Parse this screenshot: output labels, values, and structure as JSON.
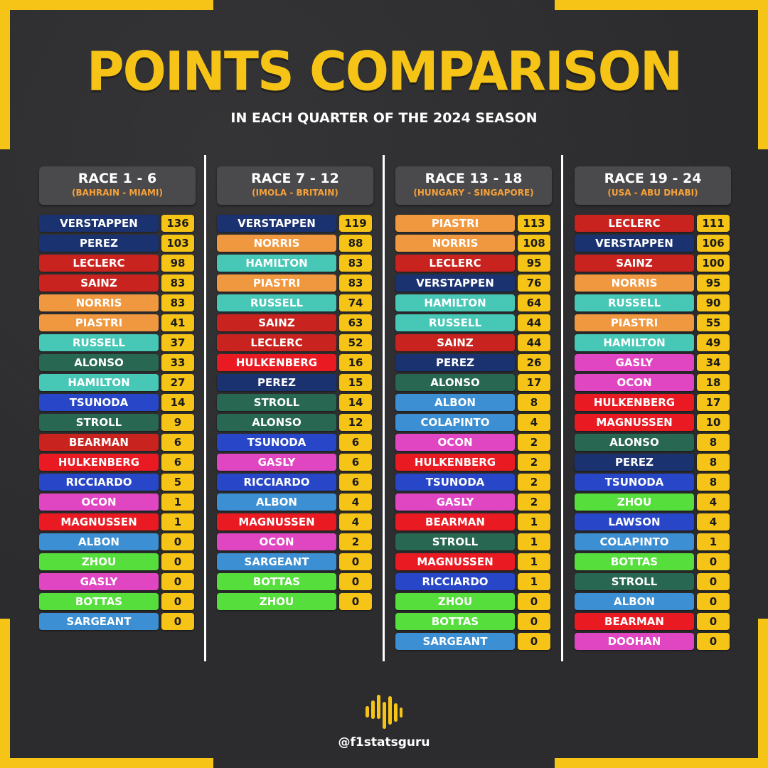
{
  "title": "POINTS COMPARISON",
  "subtitle": "IN EACH QUARTER OF THE 2024 SEASON",
  "handle": "@f1statsguru",
  "colors": {
    "accent": "#f6c417",
    "background": "#2c2c2e",
    "header_bg": "#4a4a4c",
    "header_sub": "#f6a13a"
  },
  "team_colors": {
    "redbull": "#1b3270",
    "ferrari": "#c8231f",
    "mclaren": "#f09840",
    "mercedes": "#47c7b5",
    "aston": "#286751",
    "rb": "#2847c8",
    "haas": "#ea1a22",
    "williams": "#3c8fd2",
    "sauber": "#56de3c",
    "alpine": "#e046c2"
  },
  "icons": {
    "logo": "f1statsguru-logo-icon"
  },
  "chart_data": {
    "type": "table",
    "title": "POINTS COMPARISON",
    "subtitle": "IN EACH QUARTER OF THE 2024 SEASON",
    "quarters": [
      {
        "label": "RACE 1 - 6",
        "range": "(BAHRAIN - MIAMI)",
        "rows": [
          {
            "driver": "VERSTAPPEN",
            "points": 136,
            "team": "redbull"
          },
          {
            "driver": "PEREZ",
            "points": 103,
            "team": "redbull"
          },
          {
            "driver": "LECLERC",
            "points": 98,
            "team": "ferrari"
          },
          {
            "driver": "SAINZ",
            "points": 83,
            "team": "ferrari"
          },
          {
            "driver": "NORRIS",
            "points": 83,
            "team": "mclaren"
          },
          {
            "driver": "PIASTRI",
            "points": 41,
            "team": "mclaren"
          },
          {
            "driver": "RUSSELL",
            "points": 37,
            "team": "mercedes"
          },
          {
            "driver": "ALONSO",
            "points": 33,
            "team": "aston"
          },
          {
            "driver": "HAMILTON",
            "points": 27,
            "team": "mercedes"
          },
          {
            "driver": "TSUNODA",
            "points": 14,
            "team": "rb"
          },
          {
            "driver": "STROLL",
            "points": 9,
            "team": "aston"
          },
          {
            "driver": "BEARMAN",
            "points": 6,
            "team": "ferrari"
          },
          {
            "driver": "HULKENBERG",
            "points": 6,
            "team": "haas"
          },
          {
            "driver": "RICCIARDO",
            "points": 5,
            "team": "rb"
          },
          {
            "driver": "OCON",
            "points": 1,
            "team": "alpine"
          },
          {
            "driver": "MAGNUSSEN",
            "points": 1,
            "team": "haas"
          },
          {
            "driver": "ALBON",
            "points": 0,
            "team": "williams"
          },
          {
            "driver": "ZHOU",
            "points": 0,
            "team": "sauber"
          },
          {
            "driver": "GASLY",
            "points": 0,
            "team": "alpine"
          },
          {
            "driver": "BOTTAS",
            "points": 0,
            "team": "sauber"
          },
          {
            "driver": "SARGEANT",
            "points": 0,
            "team": "williams"
          }
        ]
      },
      {
        "label": "RACE 7 - 12",
        "range": "(IMOLA - BRITAIN)",
        "rows": [
          {
            "driver": "VERSTAPPEN",
            "points": 119,
            "team": "redbull"
          },
          {
            "driver": "NORRIS",
            "points": 88,
            "team": "mclaren"
          },
          {
            "driver": "HAMILTON",
            "points": 83,
            "team": "mercedes"
          },
          {
            "driver": "PIASTRI",
            "points": 83,
            "team": "mclaren"
          },
          {
            "driver": "RUSSELL",
            "points": 74,
            "team": "mercedes"
          },
          {
            "driver": "SAINZ",
            "points": 63,
            "team": "ferrari"
          },
          {
            "driver": "LECLERC",
            "points": 52,
            "team": "ferrari"
          },
          {
            "driver": "HULKENBERG",
            "points": 16,
            "team": "haas"
          },
          {
            "driver": "PEREZ",
            "points": 15,
            "team": "redbull"
          },
          {
            "driver": "STROLL",
            "points": 14,
            "team": "aston"
          },
          {
            "driver": "ALONSO",
            "points": 12,
            "team": "aston"
          },
          {
            "driver": "TSUNODA",
            "points": 6,
            "team": "rb"
          },
          {
            "driver": "GASLY",
            "points": 6,
            "team": "alpine"
          },
          {
            "driver": "RICCIARDO",
            "points": 6,
            "team": "rb"
          },
          {
            "driver": "ALBON",
            "points": 4,
            "team": "williams"
          },
          {
            "driver": "MAGNUSSEN",
            "points": 4,
            "team": "haas"
          },
          {
            "driver": "OCON",
            "points": 2,
            "team": "alpine"
          },
          {
            "driver": "SARGEANT",
            "points": 0,
            "team": "williams"
          },
          {
            "driver": "BOTTAS",
            "points": 0,
            "team": "sauber"
          },
          {
            "driver": "ZHOU",
            "points": 0,
            "team": "sauber"
          }
        ]
      },
      {
        "label": "RACE 13 - 18",
        "range": "(HUNGARY - SINGAPORE)",
        "rows": [
          {
            "driver": "PIASTRI",
            "points": 113,
            "team": "mclaren"
          },
          {
            "driver": "NORRIS",
            "points": 108,
            "team": "mclaren"
          },
          {
            "driver": "LECLERC",
            "points": 95,
            "team": "ferrari"
          },
          {
            "driver": "VERSTAPPEN",
            "points": 76,
            "team": "redbull"
          },
          {
            "driver": "HAMILTON",
            "points": 64,
            "team": "mercedes"
          },
          {
            "driver": "RUSSELL",
            "points": 44,
            "team": "mercedes"
          },
          {
            "driver": "SAINZ",
            "points": 44,
            "team": "ferrari"
          },
          {
            "driver": "PEREZ",
            "points": 26,
            "team": "redbull"
          },
          {
            "driver": "ALONSO",
            "points": 17,
            "team": "aston"
          },
          {
            "driver": "ALBON",
            "points": 8,
            "team": "williams"
          },
          {
            "driver": "COLAPINTO",
            "points": 4,
            "team": "williams"
          },
          {
            "driver": "OCON",
            "points": 2,
            "team": "alpine"
          },
          {
            "driver": "HULKENBERG",
            "points": 2,
            "team": "haas"
          },
          {
            "driver": "TSUNODA",
            "points": 2,
            "team": "rb"
          },
          {
            "driver": "GASLY",
            "points": 2,
            "team": "alpine"
          },
          {
            "driver": "BEARMAN",
            "points": 1,
            "team": "haas"
          },
          {
            "driver": "STROLL",
            "points": 1,
            "team": "aston"
          },
          {
            "driver": "MAGNUSSEN",
            "points": 1,
            "team": "haas"
          },
          {
            "driver": "RICCIARDO",
            "points": 1,
            "team": "rb"
          },
          {
            "driver": "ZHOU",
            "points": 0,
            "team": "sauber"
          },
          {
            "driver": "BOTTAS",
            "points": 0,
            "team": "sauber"
          },
          {
            "driver": "SARGEANT",
            "points": 0,
            "team": "williams"
          }
        ]
      },
      {
        "label": "RACE 19 - 24",
        "range": "(USA - ABU DHABI)",
        "rows": [
          {
            "driver": "LECLERC",
            "points": 111,
            "team": "ferrari"
          },
          {
            "driver": "VERSTAPPEN",
            "points": 106,
            "team": "redbull"
          },
          {
            "driver": "SAINZ",
            "points": 100,
            "team": "ferrari"
          },
          {
            "driver": "NORRIS",
            "points": 95,
            "team": "mclaren"
          },
          {
            "driver": "RUSSELL",
            "points": 90,
            "team": "mercedes"
          },
          {
            "driver": "PIASTRI",
            "points": 55,
            "team": "mclaren"
          },
          {
            "driver": "HAMILTON",
            "points": 49,
            "team": "mercedes"
          },
          {
            "driver": "GASLY",
            "points": 34,
            "team": "alpine"
          },
          {
            "driver": "OCON",
            "points": 18,
            "team": "alpine"
          },
          {
            "driver": "HULKENBERG",
            "points": 17,
            "team": "haas"
          },
          {
            "driver": "MAGNUSSEN",
            "points": 10,
            "team": "haas"
          },
          {
            "driver": "ALONSO",
            "points": 8,
            "team": "aston"
          },
          {
            "driver": "PEREZ",
            "points": 8,
            "team": "redbull"
          },
          {
            "driver": "TSUNODA",
            "points": 8,
            "team": "rb"
          },
          {
            "driver": "ZHOU",
            "points": 4,
            "team": "sauber"
          },
          {
            "driver": "LAWSON",
            "points": 4,
            "team": "rb"
          },
          {
            "driver": "COLAPINTO",
            "points": 1,
            "team": "williams"
          },
          {
            "driver": "BOTTAS",
            "points": 0,
            "team": "sauber"
          },
          {
            "driver": "STROLL",
            "points": 0,
            "team": "aston"
          },
          {
            "driver": "ALBON",
            "points": 0,
            "team": "williams"
          },
          {
            "driver": "BEARMAN",
            "points": 0,
            "team": "haas"
          },
          {
            "driver": "DOOHAN",
            "points": 0,
            "team": "alpine"
          }
        ]
      }
    ]
  }
}
